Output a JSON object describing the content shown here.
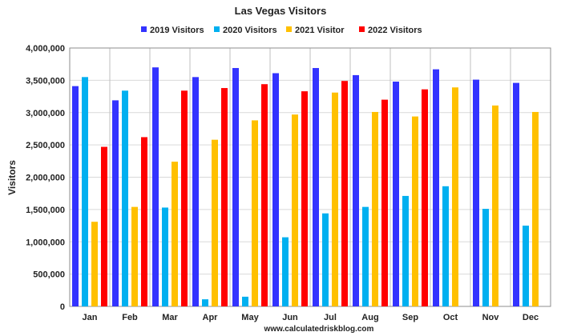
{
  "chart_data": {
    "type": "bar",
    "title": "Las Vegas Visitors",
    "ylabel": "Visitors",
    "xlabel": "",
    "source": "www.calculatedriskblog.com",
    "categories": [
      "Jan",
      "Feb",
      "Mar",
      "Apr",
      "May",
      "Jun",
      "Jul",
      "Aug",
      "Sep",
      "Oct",
      "Nov",
      "Dec"
    ],
    "ylim": [
      0,
      4000000
    ],
    "yticks": [
      0,
      500000,
      1000000,
      1500000,
      2000000,
      2500000,
      3000000,
      3500000,
      4000000
    ],
    "ytick_labels": [
      "0",
      "500,000",
      "1,000,000",
      "1,500,000",
      "2,000,000",
      "2,500,000",
      "3,000,000",
      "3,500,000",
      "4,000,000"
    ],
    "grid": true,
    "legend_position": "top",
    "series": [
      {
        "name": "2019 Visitors",
        "color": "#3333ff",
        "values": [
          3410000,
          3190000,
          3700000,
          3550000,
          3690000,
          3610000,
          3690000,
          3580000,
          3480000,
          3670000,
          3510000,
          3460000
        ]
      },
      {
        "name": "2020 Visitors",
        "color": "#00b0f0",
        "values": [
          3550000,
          3340000,
          1530000,
          110000,
          150000,
          1070000,
          1440000,
          1540000,
          1710000,
          1860000,
          1510000,
          1250000
        ]
      },
      {
        "name": "2021 Visitor",
        "color": "#ffc000",
        "values": [
          1310000,
          1540000,
          2240000,
          2580000,
          2880000,
          2970000,
          3310000,
          3010000,
          2940000,
          3390000,
          3110000,
          3010000
        ]
      },
      {
        "name": "2022 Visitors",
        "color": "#ff0000",
        "values": [
          2470000,
          2620000,
          3340000,
          3380000,
          3440000,
          3330000,
          3490000,
          3200000,
          3360000,
          null,
          null,
          null
        ]
      }
    ]
  }
}
